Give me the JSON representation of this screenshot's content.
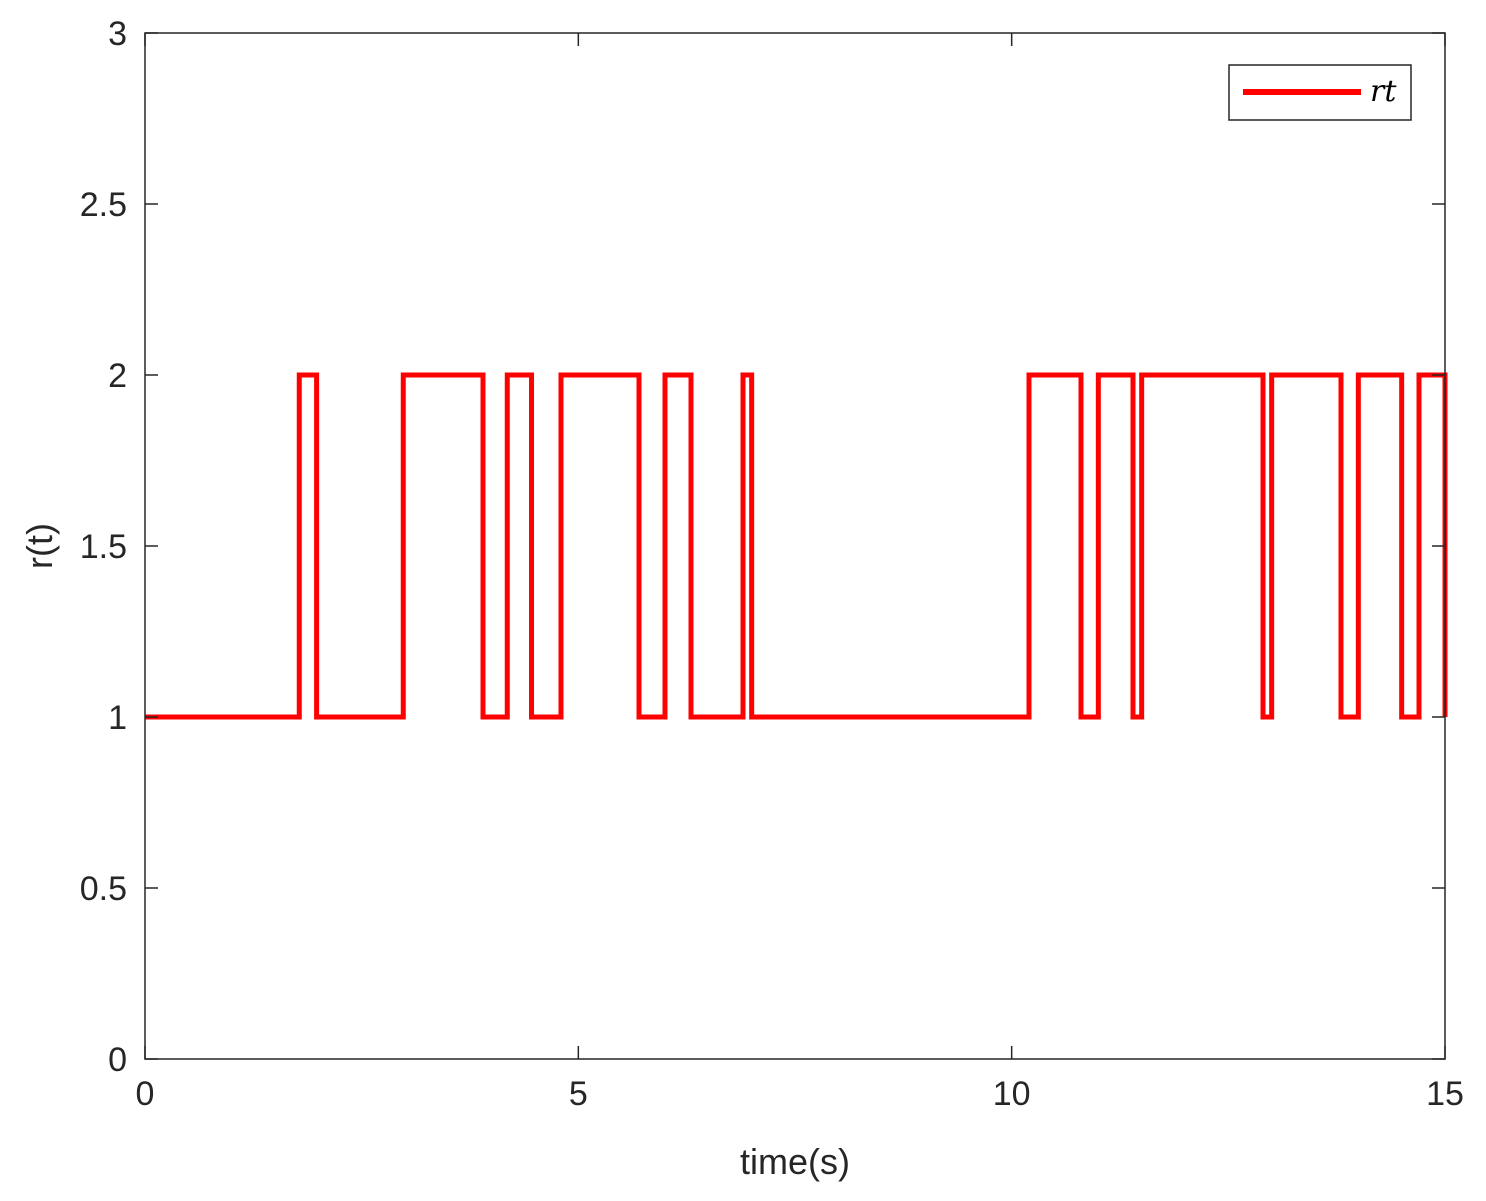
{
  "chart_data": {
    "type": "line",
    "xlabel": "time(s)",
    "ylabel": "r(t)",
    "xlim": [
      0,
      15
    ],
    "ylim": [
      0,
      3
    ],
    "xticks": [
      "0",
      "5",
      "10",
      "15"
    ],
    "yticks": [
      "0",
      "0.5",
      "1",
      "1.5",
      "2",
      "2.5",
      "3"
    ],
    "grid": false,
    "legend_position": "top-right",
    "series": [
      {
        "name": "rt",
        "color": "#ff0000",
        "step": true,
        "x": [
          0,
          1.78,
          1.98,
          2.98,
          3.9,
          4.18,
          4.46,
          4.8,
          5.7,
          6.0,
          6.3,
          6.9,
          7.0,
          10.2,
          10.8,
          11.0,
          11.4,
          11.5,
          12.9,
          13.0,
          13.8,
          14.0,
          14.5,
          14.7,
          15.0
        ],
        "y": [
          1,
          2,
          1,
          2,
          1,
          2,
          1,
          2,
          1,
          2,
          1,
          2,
          1,
          2,
          1,
          2,
          1,
          2,
          1,
          2,
          1,
          2,
          1,
          2,
          1
        ]
      }
    ]
  }
}
